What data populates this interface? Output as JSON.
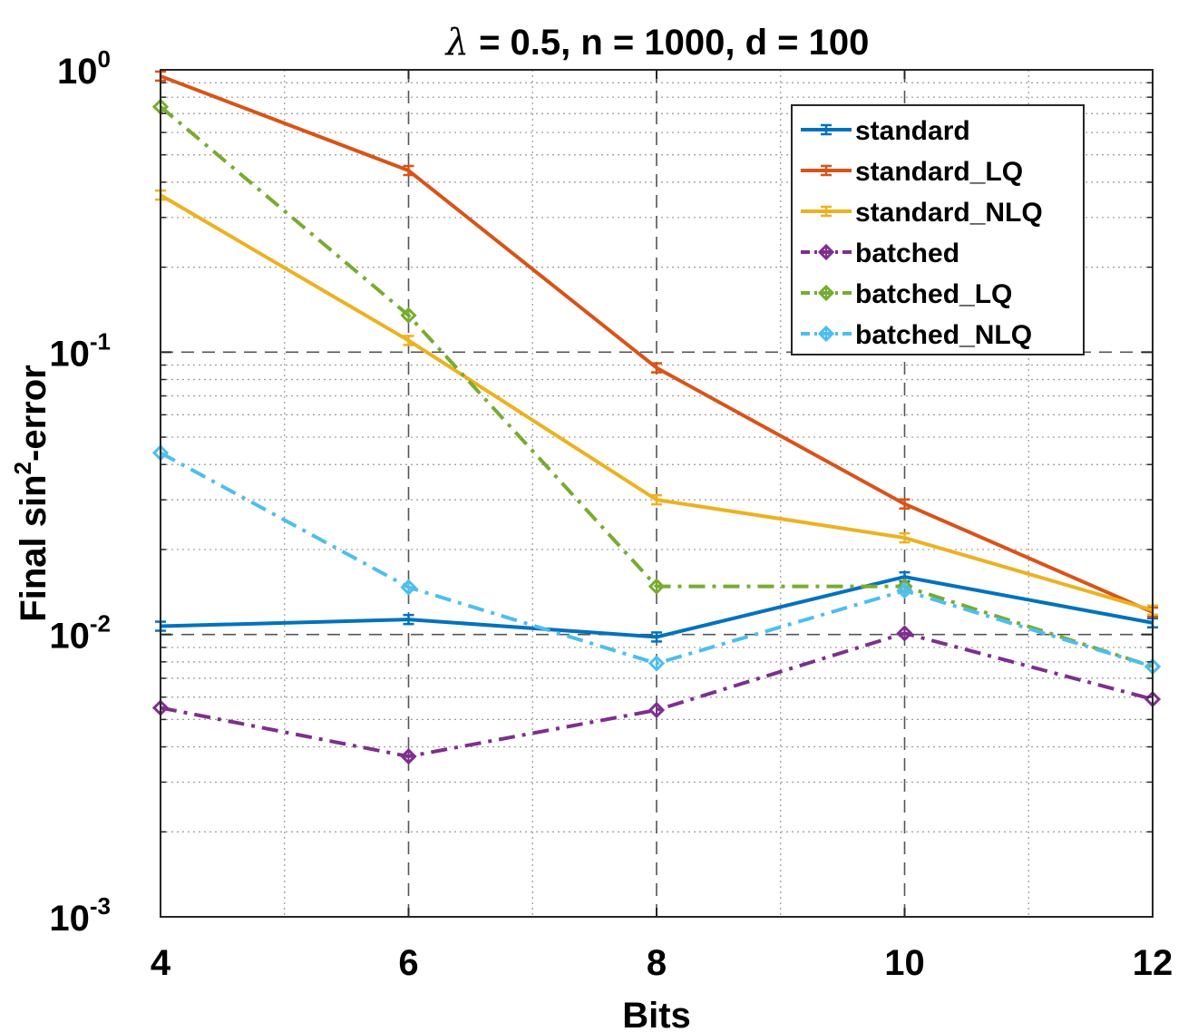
{
  "chart_data": {
    "type": "line",
    "title_prefix": "λ",
    "title_rest": " = 0.5, n = 1000, d = 100",
    "xlabel": "Bits",
    "ylabel_prefix": "Final sin",
    "ylabel_sup": "2",
    "ylabel_suffix": "-error",
    "x": [
      4,
      6,
      8,
      10,
      12
    ],
    "xlim": [
      4,
      12
    ],
    "xticks": [
      "4",
      "6",
      "8",
      "10",
      "12"
    ],
    "yscale": "log",
    "ylim": [
      0.001,
      1
    ],
    "yticks": [
      {
        "base": "10",
        "exp": "-3"
      },
      {
        "base": "10",
        "exp": "-2"
      },
      {
        "base": "10",
        "exp": "-1"
      },
      {
        "base": "10",
        "exp": "0"
      }
    ],
    "grid": true,
    "legend_position": "top-right",
    "series": [
      {
        "name": "standard",
        "color": "#0072BD",
        "style": "solid",
        "marker": "bar",
        "values": [
          0.0107,
          0.0113,
          0.0098,
          0.016,
          0.011
        ]
      },
      {
        "name": "standard_LQ",
        "color": "#D95319",
        "style": "solid",
        "marker": "bar",
        "values": [
          0.95,
          0.44,
          0.088,
          0.029,
          0.012
        ]
      },
      {
        "name": "standard_NLQ",
        "color": "#EDB120",
        "style": "solid",
        "marker": "bar",
        "values": [
          0.36,
          0.11,
          0.03,
          0.022,
          0.0122
        ]
      },
      {
        "name": "batched",
        "color": "#7E2F8E",
        "style": "dashdot",
        "marker": "diamond",
        "values": [
          0.0055,
          0.0037,
          0.0054,
          0.0101,
          0.0059
        ]
      },
      {
        "name": "batched_LQ",
        "color": "#77AC30",
        "style": "dashdot",
        "marker": "diamond",
        "values": [
          0.74,
          0.135,
          0.0148,
          0.0148,
          0.0077
        ]
      },
      {
        "name": "batched_NLQ",
        "color": "#4DBEEE",
        "style": "dashdot",
        "marker": "diamond",
        "values": [
          0.044,
          0.0147,
          0.0079,
          0.0143,
          0.0077
        ]
      }
    ]
  }
}
